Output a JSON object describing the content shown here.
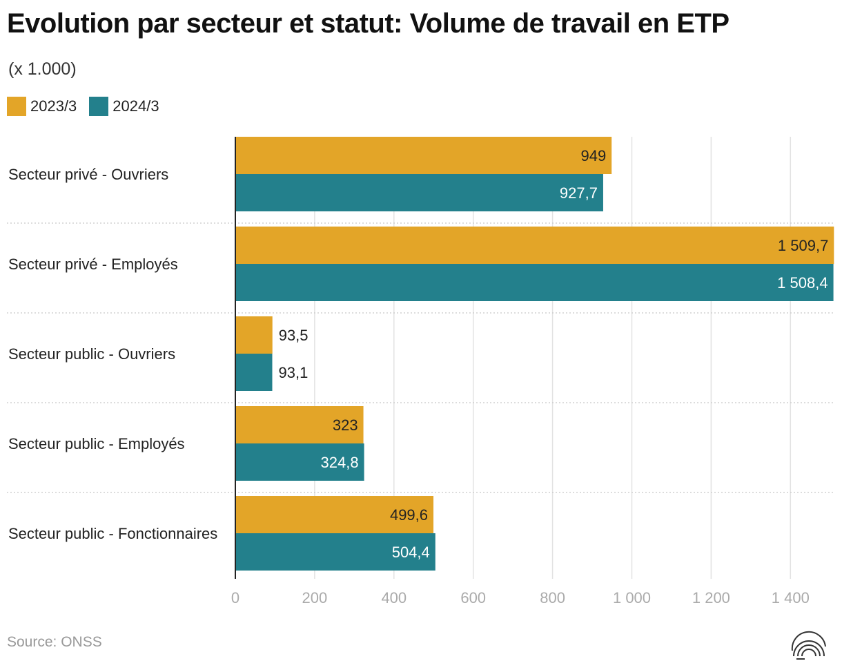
{
  "title": "Evolution par secteur et statut: Volume de travail en ETP",
  "subtitle": "(x 1.000)",
  "legend": [
    {
      "label": "2023/3",
      "color": "#E3A528"
    },
    {
      "label": "2024/3",
      "color": "#23808C"
    }
  ],
  "source": "Source: ONSS",
  "chart_data": {
    "type": "bar",
    "orientation": "horizontal",
    "title": "Evolution par secteur et statut: Volume de travail en ETP",
    "unit": "(x 1.000)",
    "categories": [
      "Secteur privé - Ouvriers",
      "Secteur privé - Employés",
      "Secteur public - Ouvriers",
      "Secteur public - Employés",
      "Secteur public - Fonctionnaires"
    ],
    "series": [
      {
        "name": "2023/3",
        "color": "#E3A528",
        "values": [
          949,
          1509.7,
          93.5,
          323,
          499.6
        ],
        "labels": [
          "949",
          "1 509,7",
          "93,5",
          "323",
          "499,6"
        ]
      },
      {
        "name": "2024/3",
        "color": "#23808C",
        "values": [
          927.7,
          1508.4,
          93.1,
          324.8,
          504.4
        ],
        "labels": [
          "927,7",
          "1 508,4",
          "93,1",
          "324,8",
          "504,4"
        ]
      }
    ],
    "xticks": [
      0,
      200,
      400,
      600,
      800,
      1000,
      1200,
      1400
    ],
    "xtick_labels": [
      "0",
      "200",
      "400",
      "600",
      "800",
      "1 000",
      "1 200",
      "1 400"
    ],
    "xlim": [
      0,
      1510
    ],
    "grid": true,
    "legend_position": "top-left"
  }
}
